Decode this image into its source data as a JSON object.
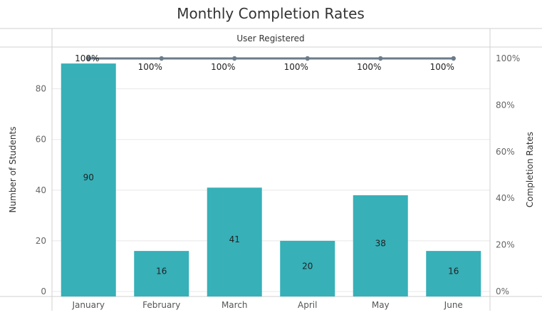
{
  "chart_data": {
    "type": "bar",
    "title": "Monthly Completion Rates",
    "header": "User Registered",
    "categories": [
      "January",
      "February",
      "March",
      "April",
      "May",
      "June"
    ],
    "ylabel": "Number of Students",
    "y2label": "Completion Rates",
    "ylim": [
      0,
      92
    ],
    "y_ticks": [
      0,
      20,
      40,
      60,
      80
    ],
    "y2lim": [
      0,
      1.0
    ],
    "y2_ticks": [
      "0%",
      "20%",
      "40%",
      "60%",
      "80%",
      "100%"
    ],
    "series": [
      {
        "values": [
          90,
          16,
          41,
          20,
          38,
          16
        ],
        "kind": "bar",
        "axis": "left",
        "labels": [
          "90",
          "16",
          "41",
          "20",
          "38",
          "16"
        ]
      },
      {
        "values": [
          1.0,
          1.0,
          1.0,
          1.0,
          1.0,
          1.0
        ],
        "kind": "line",
        "axis": "right",
        "labels": [
          "100%",
          "100%",
          "100%",
          "100%",
          "100%",
          "100%"
        ]
      }
    ],
    "grid": true,
    "colors": {
      "bar": "#37b0b8",
      "line": "#6b7c8a",
      "grid": "#e8e8e8",
      "frame": "#d0d0d0"
    }
  }
}
